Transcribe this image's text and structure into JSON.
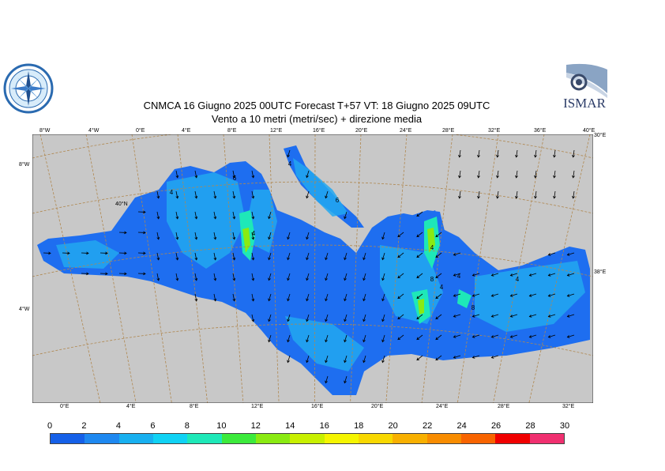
{
  "header": {
    "title_line1": "CNMCA 16   Giugno  2025 00UTC Forecast T+57 VT: 18   Giugno  2025 09UTC",
    "title_line2": "Vento a 10 metri (metri/sec) + direzione media"
  },
  "logos": {
    "left_icon": "compass-rose-logo-icon",
    "right_text": "ISMAR"
  },
  "map": {
    "top_lon_labels": [
      "8°W",
      "4°W",
      "0°E",
      "4°E",
      "8°E",
      "12°E",
      "16°E",
      "20°E",
      "24°E",
      "28°E",
      "32°E",
      "36°E",
      "40°E"
    ],
    "bottom_lon_labels": [
      "0°E",
      "4°E",
      "8°E",
      "12°E",
      "16°E",
      "20°E",
      "24°E",
      "28°E",
      "32°E"
    ],
    "left_lat_labels": [
      "8°W",
      "40°N",
      "4°W"
    ],
    "right_lat_labels": [
      "30°E",
      "38°E"
    ],
    "contour_labels": [
      "4",
      "6",
      "4",
      "4",
      "6",
      "8",
      "4",
      "4",
      "4",
      "4",
      "8"
    ],
    "colors": {
      "land": "#c8c8c8",
      "grid": "#b08850",
      "sea_low": "#1e6ef0",
      "sea_mid": "#22a8f0"
    }
  },
  "colorbar": {
    "labels": [
      "0",
      "2",
      "4",
      "6",
      "8",
      "10",
      "12",
      "14",
      "16",
      "18",
      "20",
      "22",
      "24",
      "26",
      "28",
      "30"
    ],
    "colors": [
      "#1560e8",
      "#1e88f0",
      "#18b0f0",
      "#10d2f4",
      "#1ee8b8",
      "#3cea3c",
      "#8aea12",
      "#c8f000",
      "#f5f500",
      "#f8d800",
      "#f8b000",
      "#f88c00",
      "#f86400",
      "#f00000",
      "#f03070"
    ]
  }
}
